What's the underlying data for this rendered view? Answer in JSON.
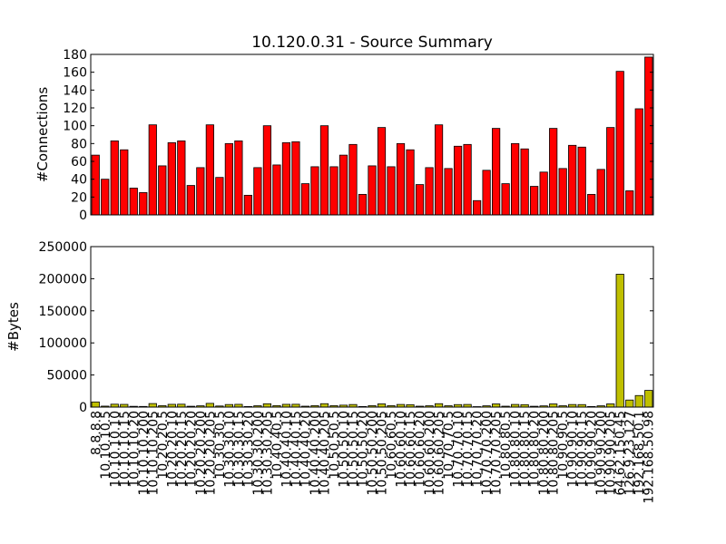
{
  "chart_data": [
    {
      "type": "bar",
      "title": "10.120.0.31 - Source Summary",
      "ylabel": "#Connections",
      "color": "#ff0000",
      "values": [
        67,
        40,
        83,
        73,
        30,
        25,
        101,
        55,
        81,
        83,
        33,
        53,
        101,
        42,
        80,
        83,
        22,
        53,
        100,
        56,
        81,
        82,
        35,
        54,
        100,
        54,
        67,
        79,
        23,
        55,
        98,
        54,
        80,
        73,
        34,
        53,
        101,
        52,
        77,
        79,
        16,
        50,
        97,
        35,
        80,
        74,
        32,
        48,
        97,
        52,
        78,
        76,
        23,
        51,
        98,
        161,
        27,
        119,
        177
      ],
      "ylim": [
        0,
        180
      ],
      "yticks": [
        0,
        20,
        40,
        60,
        80,
        100,
        120,
        140,
        160,
        180
      ]
    },
    {
      "type": "bar",
      "ylabel": "#Bytes",
      "color": "#bfbf00",
      "categories": [
        "8.8.8.8",
        "10.10.10.5",
        "10.10.10.10",
        "10.10.10.15",
        "10.10.10.20",
        "10.10.10.200",
        "10.10.10.205",
        "10.20.20.5",
        "10.20.20.10",
        "10.20.20.15",
        "10.20.20.20",
        "10.20.20.200",
        "10.20.20.205",
        "10.30.30.5",
        "10.30.30.10",
        "10.30.30.15",
        "10.30.30.20",
        "10.30.30.200",
        "10.30.30.205",
        "10.40.40.5",
        "10.40.40.10",
        "10.40.40.15",
        "10.40.40.20",
        "10.40.40.200",
        "10.40.40.205",
        "10.50.50.5",
        "10.50.50.10",
        "10.50.50.15",
        "10.50.50.20",
        "10.50.50.200",
        "10.50.50.205",
        "10.60.60.5",
        "10.60.60.10",
        "10.60.60.15",
        "10.60.60.20",
        "10.60.60.200",
        "10.60.60.205",
        "10.70.70.5",
        "10.70.70.10",
        "10.70.70.15",
        "10.70.70.20",
        "10.70.70.200",
        "10.70.70.205",
        "10.80.80.5",
        "10.80.80.10",
        "10.80.80.15",
        "10.80.80.20",
        "10.80.80.200",
        "10.80.80.205",
        "10.90.90.5",
        "10.90.90.10",
        "10.90.90.15",
        "10.90.90.20",
        "10.90.90.200",
        "10.90.90.205",
        "64.62.150.45",
        "126.9.23.127",
        "192.168.50.1",
        "192.168.50.98"
      ],
      "values": [
        8000,
        1500,
        4500,
        4200,
        1200,
        1000,
        5500,
        2200,
        4300,
        4500,
        1300,
        2000,
        5800,
        1700,
        4000,
        4300,
        900,
        2100,
        5200,
        2300,
        4300,
        4400,
        1400,
        2200,
        5300,
        2200,
        3000,
        4000,
        900,
        2200,
        5000,
        2200,
        4100,
        3700,
        1400,
        2100,
        5300,
        2100,
        3900,
        4100,
        700,
        2000,
        4900,
        1400,
        4100,
        3800,
        1300,
        1900,
        4900,
        2100,
        4000,
        3900,
        900,
        2000,
        5000,
        207000,
        11000,
        18000,
        26000
      ],
      "ylim": [
        0,
        250000
      ],
      "yticks": [
        0,
        50000,
        100000,
        150000,
        200000,
        250000
      ]
    }
  ]
}
